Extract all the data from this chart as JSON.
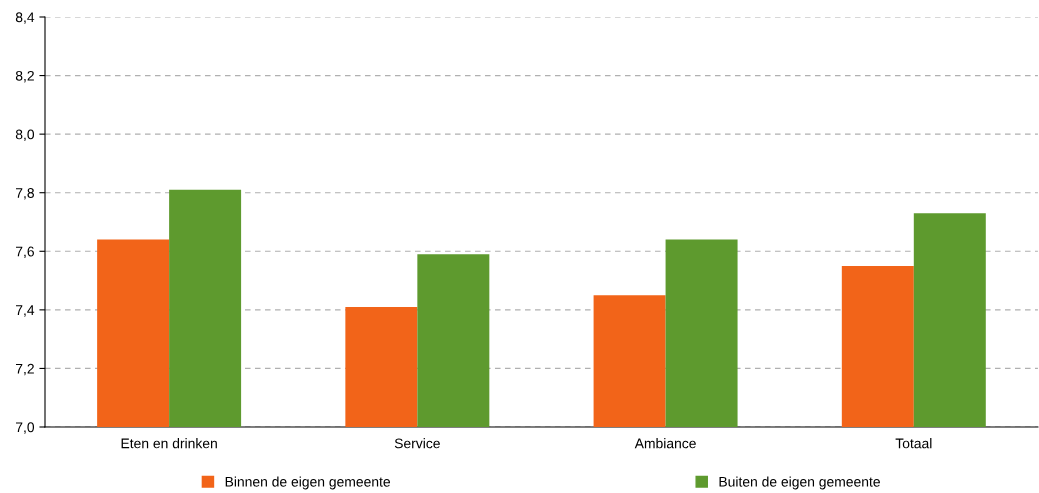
{
  "chart_data": {
    "type": "bar",
    "categories": [
      "Eten en drinken",
      "Service",
      "Ambiance",
      "Totaal"
    ],
    "series": [
      {
        "name": "Binnen de eigen gemeente",
        "color": "#f26419",
        "values": [
          7.64,
          7.41,
          7.45,
          7.55
        ]
      },
      {
        "name": "Buiten de eigen gemeente",
        "color": "#5e9a2e",
        "values": [
          7.81,
          7.59,
          7.64,
          7.73
        ]
      }
    ],
    "ylim": [
      7.0,
      8.4
    ],
    "yticks": [
      {
        "value": 7.0,
        "label": "7,0"
      },
      {
        "value": 7.2,
        "label": "7,2"
      },
      {
        "value": 7.4,
        "label": "7,4"
      },
      {
        "value": 7.6,
        "label": "7,6"
      },
      {
        "value": 7.8,
        "label": "7,8"
      },
      {
        "value": 8.0,
        "label": "8,0"
      },
      {
        "value": 8.2,
        "label": "8,2"
      },
      {
        "value": 8.4,
        "label": "8,4"
      }
    ],
    "grid": "y",
    "legend": "bottom"
  }
}
